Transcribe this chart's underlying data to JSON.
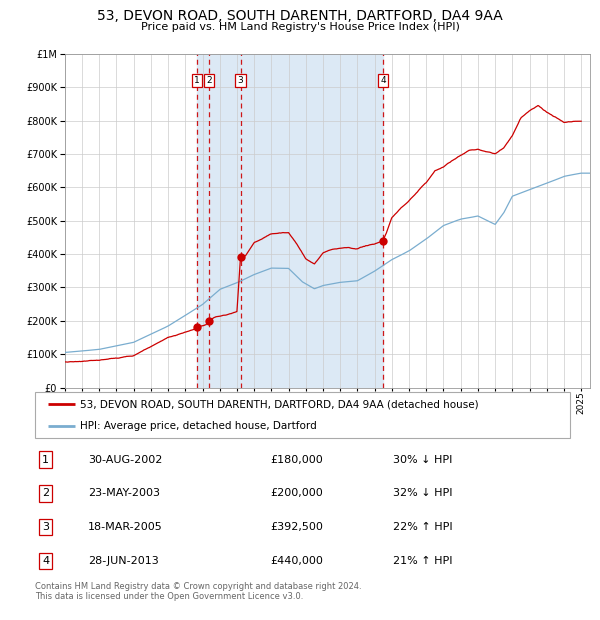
{
  "title": "53, DEVON ROAD, SOUTH DARENTH, DARTFORD, DA4 9AA",
  "subtitle": "Price paid vs. HM Land Registry's House Price Index (HPI)",
  "background_color": "#ffffff",
  "plot_bg_color": "#ffffff",
  "shaded_region_color": "#dce9f5",
  "grid_color": "#cccccc",
  "sale_events": [
    {
      "label": "1",
      "date_year": 2002.66,
      "price": 180000,
      "date_str": "30-AUG-2002",
      "pct": "30%",
      "dir": "↓"
    },
    {
      "label": "2",
      "date_year": 2003.39,
      "price": 200000,
      "date_str": "23-MAY-2003",
      "pct": "32%",
      "dir": "↓"
    },
    {
      "label": "3",
      "date_year": 2005.21,
      "price": 392500,
      "date_str": "18-MAR-2005",
      "pct": "22%",
      "dir": "↑"
    },
    {
      "label": "4",
      "date_year": 2013.49,
      "price": 440000,
      "date_str": "28-JUN-2013",
      "pct": "21%",
      "dir": "↑"
    }
  ],
  "shaded_start": 2002.66,
  "shaded_end": 2013.49,
  "ylim": [
    0,
    1000000
  ],
  "xlim_start": 1995,
  "xlim_end": 2025.5,
  "red_line_color": "#cc0000",
  "blue_line_color": "#7aadcf",
  "marker_color": "#cc0000",
  "vline_color": "#cc0000",
  "footnote": "Contains HM Land Registry data © Crown copyright and database right 2024.\nThis data is licensed under the Open Government Licence v3.0.",
  "legend_label_red": "53, DEVON ROAD, SOUTH DARENTH, DARTFORD, DA4 9AA (detached house)",
  "legend_label_blue": "HPI: Average price, detached house, Dartford",
  "table_rows": [
    [
      "1",
      "30-AUG-2002",
      "£180,000",
      "30% ↓ HPI"
    ],
    [
      "2",
      "23-MAY-2003",
      "£200,000",
      "32% ↓ HPI"
    ],
    [
      "3",
      "18-MAR-2005",
      "£392,500",
      "22% ↑ HPI"
    ],
    [
      "4",
      "28-JUN-2013",
      "£440,000",
      "21% ↑ HPI"
    ]
  ]
}
